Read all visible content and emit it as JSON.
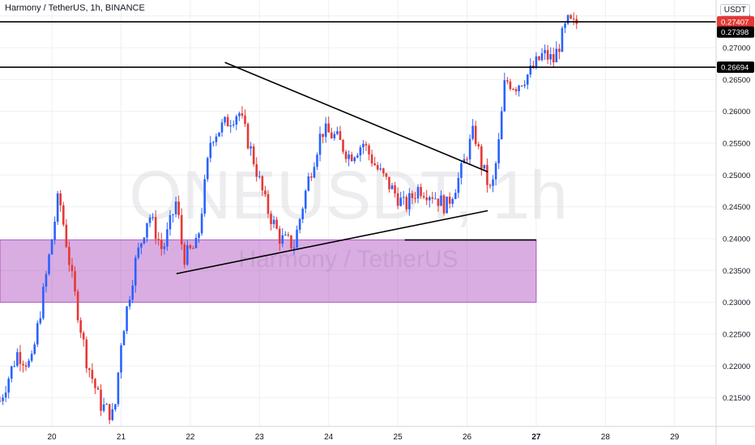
{
  "chart_data": {
    "type": "candlestick",
    "title": "Harmony / TetherUS, 1h, BINANCE",
    "watermark_symbol": "ONEUSDT, 1h",
    "watermark_name": "Harmony / TetherUS",
    "currency": "USDT",
    "x_ticks": [
      "20",
      "21",
      "22",
      "23",
      "24",
      "25",
      "26",
      "27",
      "28",
      "29"
    ],
    "y_ticks": [
      "0.21500",
      "0.22000",
      "0.22500",
      "0.23000",
      "0.23500",
      "0.24000",
      "0.24500",
      "0.25000",
      "0.25500",
      "0.26000",
      "0.26500",
      "0.27000",
      "0.27500"
    ],
    "ylim": [
      0.2105,
      0.2775
    ],
    "xlim": [
      19.25,
      29.6
    ],
    "price_labels": [
      {
        "value": "0.27407",
        "level": 0.27407,
        "color": "#e53935"
      },
      {
        "value": "0.27398",
        "level": 0.27398,
        "color": "#000000"
      },
      {
        "value": "0.26694",
        "level": 0.26694,
        "color": "#000000"
      }
    ],
    "horizontal_lines": [
      0.27407,
      0.26694
    ],
    "support_zone": {
      "x": [
        19.25,
        27.0
      ],
      "y": [
        0.23,
        0.2398
      ],
      "color": "#9c27b0"
    },
    "trendlines": [
      {
        "x": [
          22.5,
          26.3
        ],
        "y": [
          0.2677,
          0.2505
        ]
      },
      {
        "x": [
          21.8,
          26.3
        ],
        "y": [
          0.2345,
          0.2444
        ]
      },
      {
        "x": [
          25.1,
          27.0
        ],
        "y": [
          0.2398,
          0.2398
        ]
      }
    ],
    "bull_color": "#2962ff",
    "bear_color": "#e53935",
    "path": [
      [
        19.25,
        0.2145
      ],
      [
        19.5,
        0.222
      ],
      [
        19.7,
        0.22
      ],
      [
        19.9,
        0.233
      ],
      [
        20.1,
        0.247
      ],
      [
        20.3,
        0.233
      ],
      [
        20.5,
        0.221
      ],
      [
        20.7,
        0.214
      ],
      [
        20.9,
        0.212
      ],
      [
        21.0,
        0.224
      ],
      [
        21.2,
        0.236
      ],
      [
        21.4,
        0.244
      ],
      [
        21.6,
        0.238
      ],
      [
        21.8,
        0.246
      ],
      [
        21.9,
        0.237
      ],
      [
        22.1,
        0.239
      ],
      [
        22.3,
        0.256
      ],
      [
        22.5,
        0.258
      ],
      [
        22.7,
        0.26
      ],
      [
        22.9,
        0.253
      ],
      [
        23.1,
        0.245
      ],
      [
        23.3,
        0.24
      ],
      [
        23.5,
        0.239
      ],
      [
        23.7,
        0.249
      ],
      [
        23.9,
        0.257
      ],
      [
        24.1,
        0.256
      ],
      [
        24.3,
        0.253
      ],
      [
        24.5,
        0.255
      ],
      [
        24.7,
        0.251
      ],
      [
        24.9,
        0.248
      ],
      [
        25.1,
        0.245
      ],
      [
        25.3,
        0.248
      ],
      [
        25.5,
        0.247
      ],
      [
        25.7,
        0.245
      ],
      [
        25.9,
        0.25
      ],
      [
        26.1,
        0.257
      ],
      [
        26.2,
        0.252
      ],
      [
        26.35,
        0.247
      ],
      [
        26.45,
        0.254
      ],
      [
        26.55,
        0.265
      ],
      [
        26.7,
        0.264
      ],
      [
        26.9,
        0.266
      ],
      [
        27.1,
        0.269
      ],
      [
        27.25,
        0.268
      ],
      [
        27.35,
        0.271
      ],
      [
        27.45,
        0.274
      ],
      [
        27.55,
        0.2735
      ],
      [
        27.6,
        0.274
      ]
    ]
  }
}
